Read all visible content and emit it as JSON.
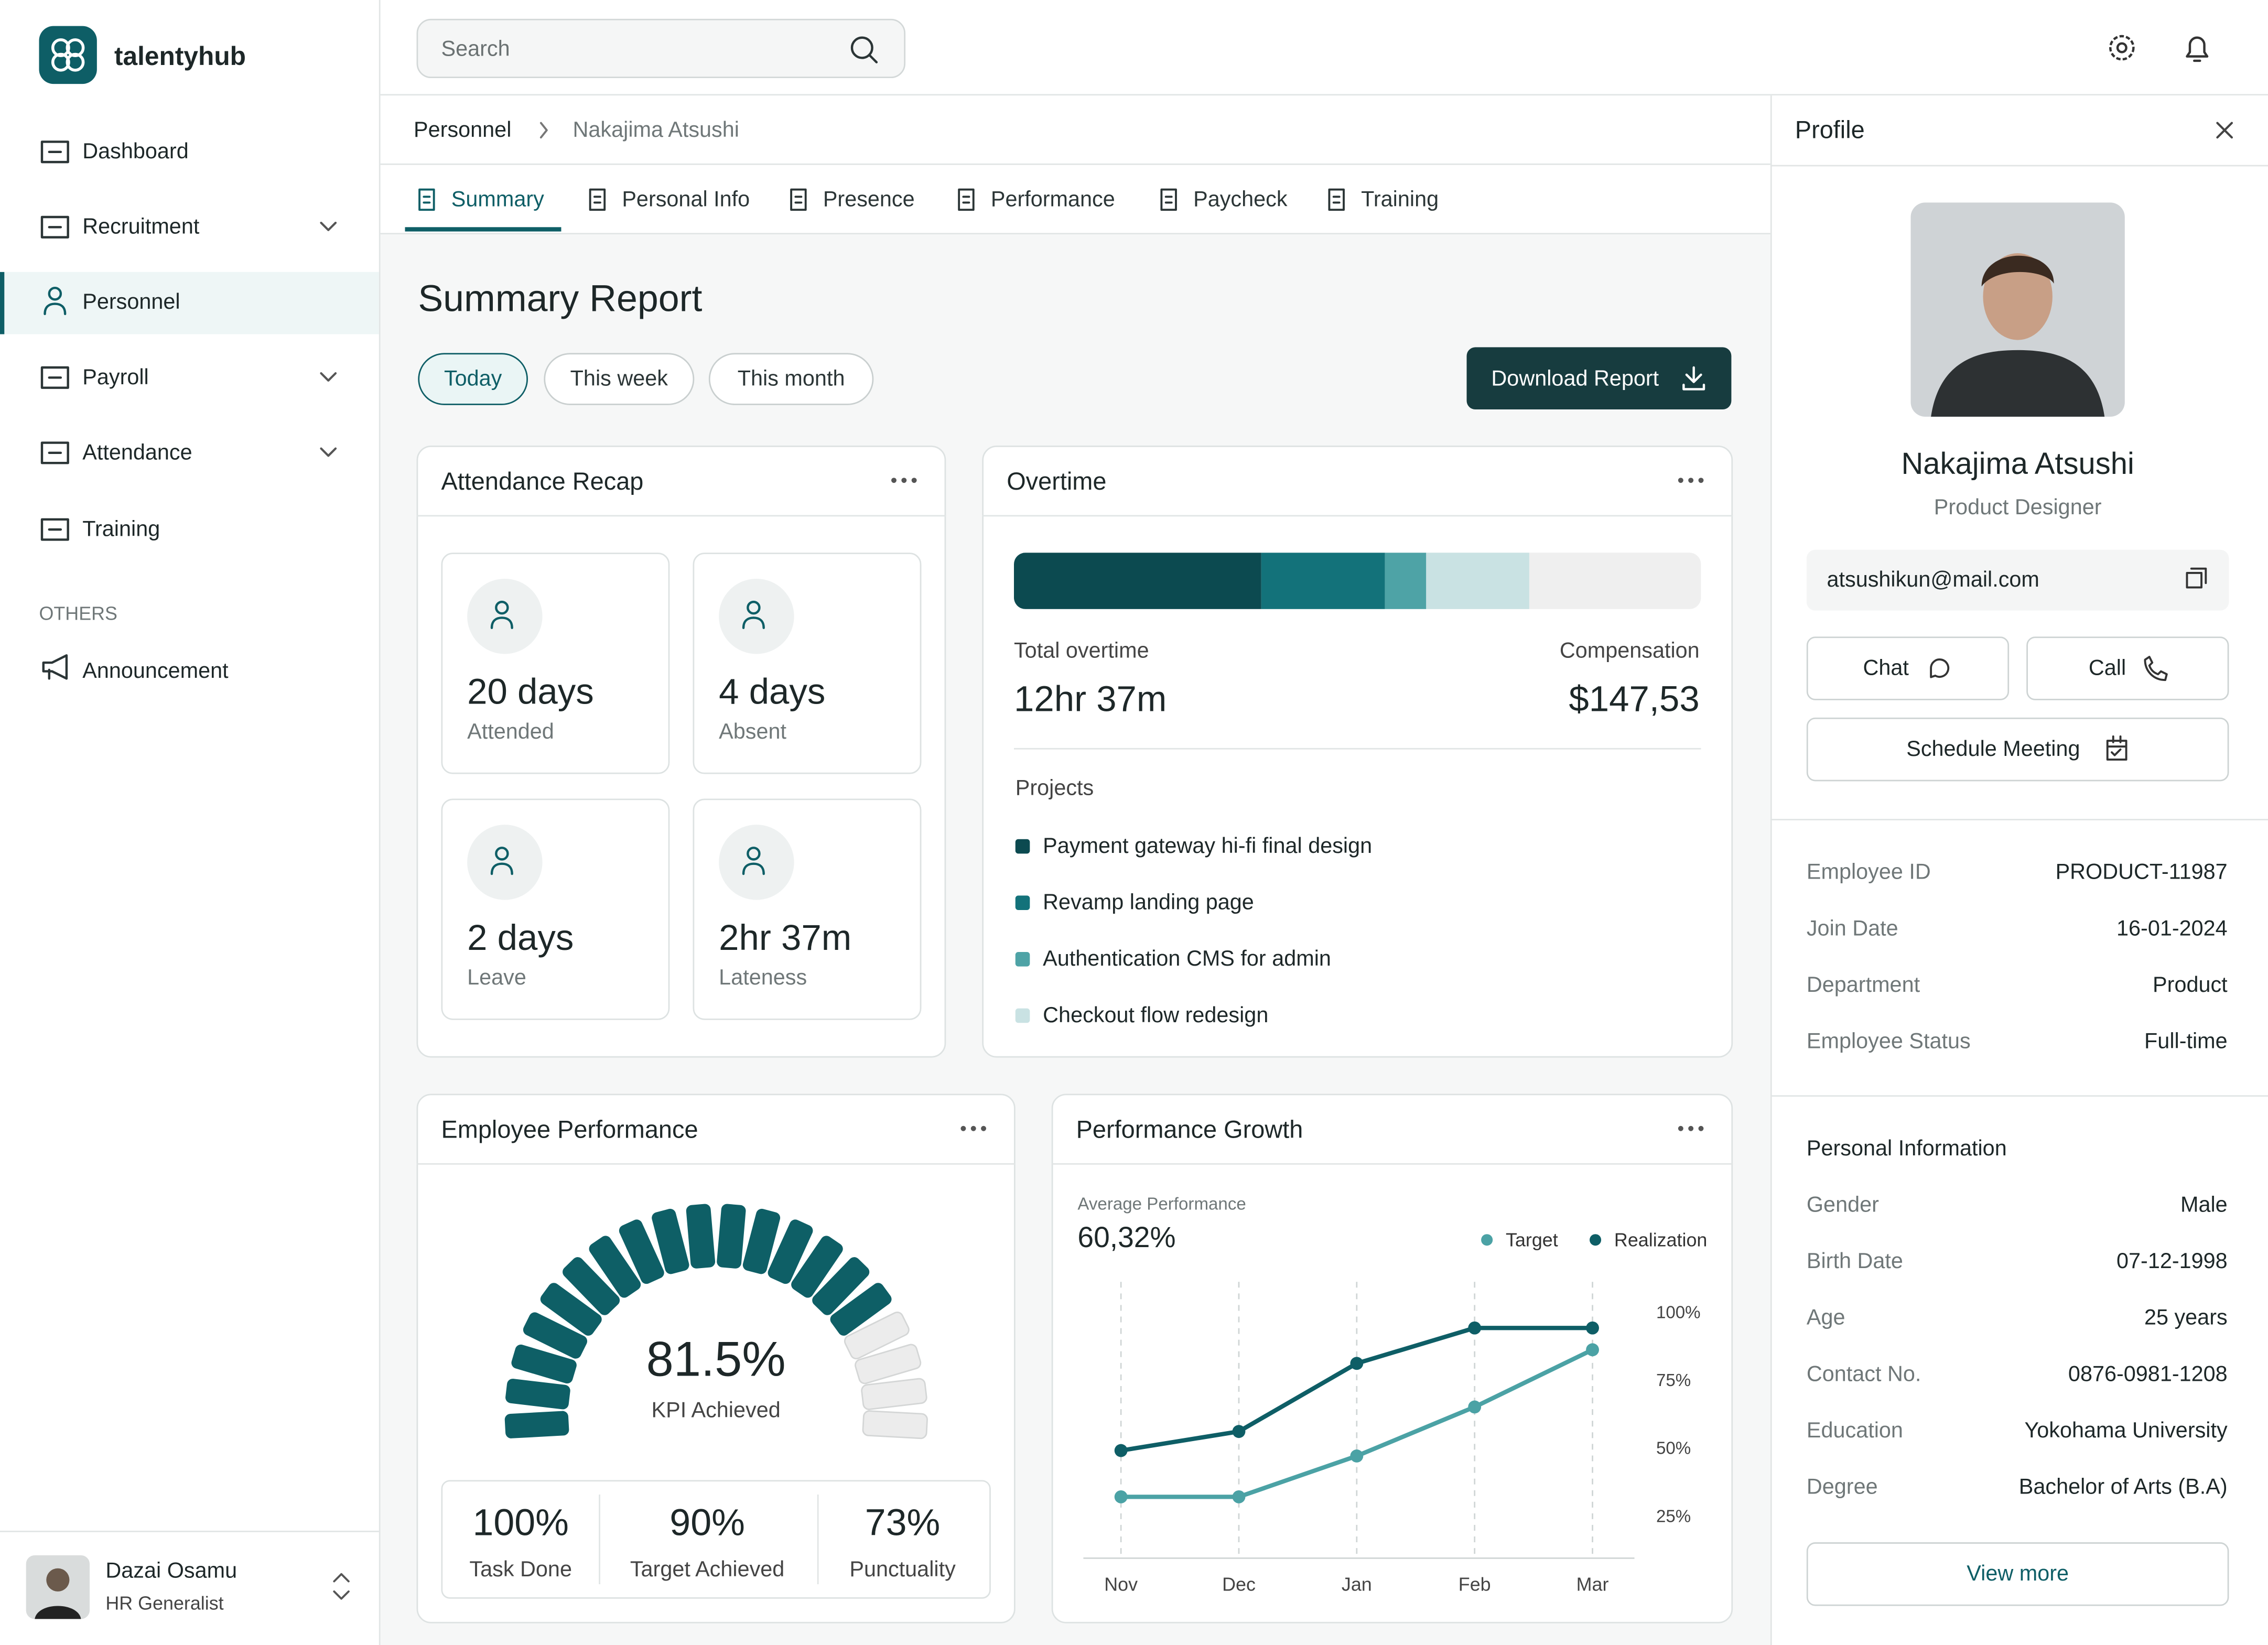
{
  "brand": "talentyhub",
  "search_placeholder": "Search",
  "nav": [
    "Dashboard",
    "Recruitment",
    "Personnel",
    "Payroll",
    "Attendance",
    "Training"
  ],
  "others_label": "OTHERS",
  "others_nav": [
    "Announcement"
  ],
  "user": {
    "name": "Dazai Osamu",
    "role": "HR Generalist"
  },
  "breadcrumb": [
    "Personnel",
    "Nakajima Atsushi"
  ],
  "tabs": [
    "Summary",
    "Personal Info",
    "Presence",
    "Performance",
    "Paycheck",
    "Training"
  ],
  "page_title": "Summary Report",
  "filters": [
    "Today",
    "This week",
    "This month"
  ],
  "download_button": "Download Report",
  "attendance_recap": {
    "title": "Attendance Recap",
    "cards": [
      {
        "value": "20 days",
        "label": "Attended"
      },
      {
        "value": "4 days",
        "label": "Absent"
      },
      {
        "value": "2 days",
        "label": "Leave"
      },
      {
        "value": "2hr 37m",
        "label": "Lateness"
      }
    ]
  },
  "employee_performance_stats": [
    {
      "value": "100%",
      "label": "Task Done"
    },
    {
      "value": "90%",
      "label": "Target Achieved"
    },
    {
      "value": "73%",
      "label": "Punctuality"
    }
  ],
  "profile": {
    "title": "Profile",
    "name": "Nakajima Atsushi",
    "role": "Product Designer",
    "email": "atsushikun@mail.com",
    "buttons": [
      "Chat",
      "Call",
      "Schedule Meeting"
    ],
    "details": [
      [
        "Employee ID",
        "PRODUCT-11987"
      ],
      [
        "Join Date",
        "16-01-2024"
      ],
      [
        "Department",
        "Product"
      ],
      [
        "Employee Status",
        "Full-time"
      ]
    ],
    "personal_title": "Personal Information",
    "personal": [
      [
        "Gender",
        "Male"
      ],
      [
        "Birth Date",
        "07-12-1998"
      ],
      [
        "Age",
        "25 years"
      ],
      [
        "Contact No.",
        "0876-0981-1208"
      ],
      [
        "Education",
        "Yokohama University"
      ],
      [
        "Degree",
        "Bachelor of Arts (B.A)"
      ]
    ],
    "view_more": "View more"
  },
  "chart_data": [
    {
      "type": "stacked-bar",
      "title": "Overtime",
      "total_label": "Total overtime",
      "total": "12hr 37m",
      "compensation_label": "Compensation",
      "compensation": "$147,53",
      "projects_label": "Projects",
      "categories": [
        "Payment gateway hi-fi final design",
        "Revamp landing page",
        "Authentication CMS for admin",
        "Checkout flow redesign"
      ],
      "values": [
        36,
        18,
        6,
        15
      ],
      "colors": [
        "#0c4a50",
        "#13727a",
        "#4ea3a6",
        "#c9e2e3"
      ],
      "xlim": [
        0,
        100
      ]
    },
    {
      "type": "gauge",
      "title": "Employee Performance",
      "values": [
        81.5
      ],
      "value_labels": [
        "81.5%"
      ],
      "label": "KPI Achieved",
      "ylim": [
        0,
        100
      ],
      "color": "#0e5f66"
    },
    {
      "type": "line",
      "title": "Performance Growth",
      "subtitle": "Average Performance",
      "headline": "60,32%",
      "categories": [
        "Nov",
        "Dec",
        "Jan",
        "Feb",
        "Mar"
      ],
      "series": [
        {
          "name": "Target",
          "color": "#4ba2a5",
          "values": [
            32,
            32,
            47,
            65,
            86
          ]
        },
        {
          "name": "Realization",
          "color": "#0e5e66",
          "values": [
            49,
            56,
            81,
            94,
            94
          ]
        }
      ],
      "ylim": [
        10,
        112
      ],
      "yticks": [
        {
          "value": 25,
          "label": "25%"
        },
        {
          "value": 50,
          "label": "50%"
        },
        {
          "value": 75,
          "label": "75%"
        },
        {
          "value": 100,
          "label": "100%"
        }
      ],
      "grid": true
    }
  ]
}
